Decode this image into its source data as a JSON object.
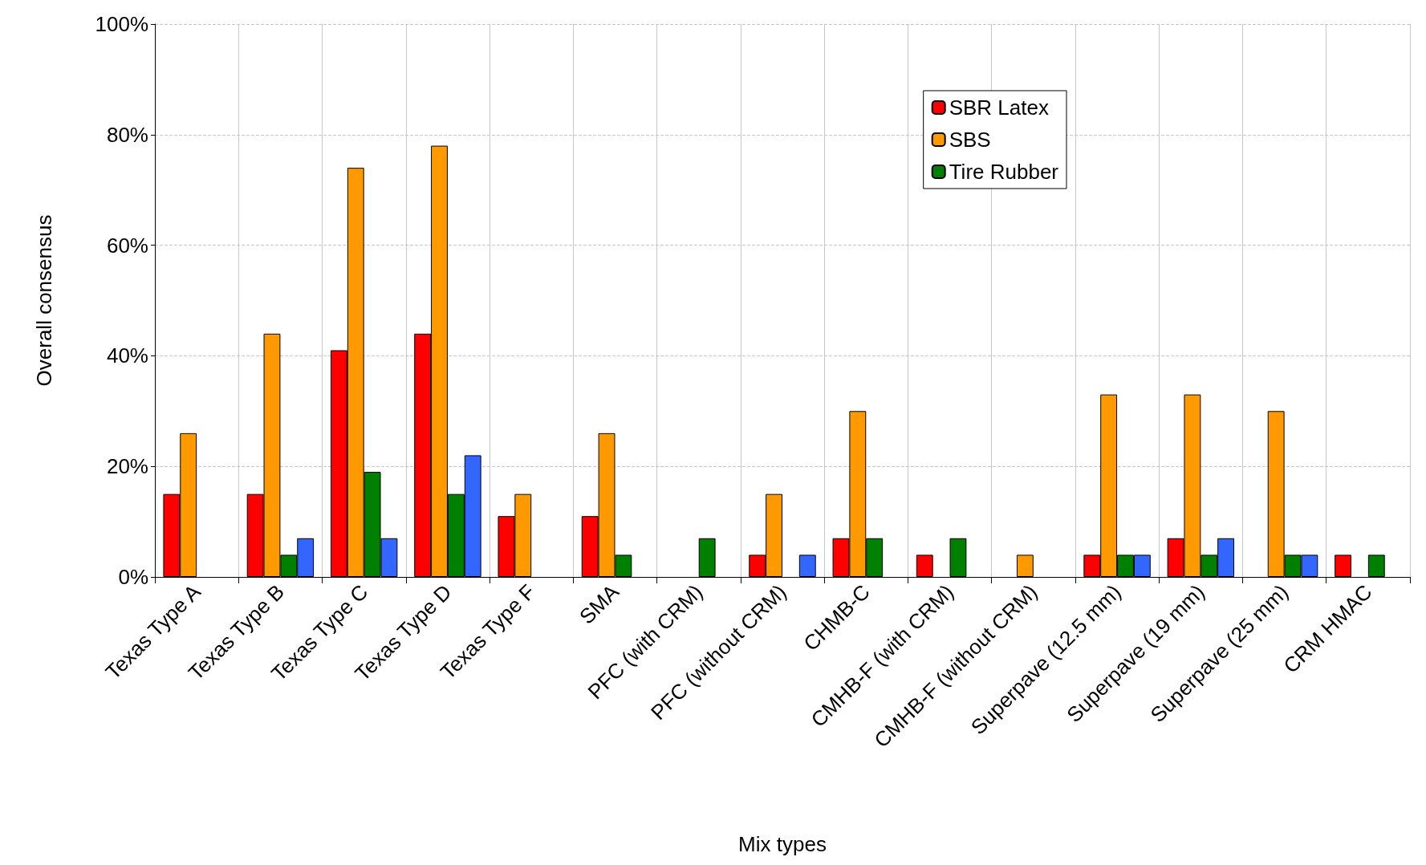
{
  "chart_data": {
    "type": "bar",
    "xlabel": "Mix types",
    "ylabel": "Overall consensus",
    "categories": [
      "Texas Type A",
      "Texas Type B",
      "Texas Type C",
      "Texas Type D",
      "Texas Type F",
      "SMA",
      "PFC (with CRM)",
      "PFC (without CRM)",
      "CHMB-C",
      "CMHB-F (with CRM)",
      "CMHB-F (without CRM)",
      "Superpave (12.5 mm)",
      "Superpave (19 mm)",
      "Superpave (25 mm)",
      "CRM HMAC"
    ],
    "series": [
      {
        "name": "SBR Latex",
        "color": "#ff0000",
        "values": [
          15,
          15,
          41,
          44,
          11,
          11,
          null,
          4,
          7,
          4,
          null,
          4,
          7,
          null,
          4
        ]
      },
      {
        "name": "SBS",
        "color": "#ff9900",
        "values": [
          26,
          44,
          74,
          78,
          15,
          26,
          null,
          15,
          30,
          null,
          4,
          33,
          33,
          30,
          null
        ]
      },
      {
        "name": "Tire Rubber",
        "color": "#008000",
        "values": [
          null,
          4,
          19,
          15,
          null,
          4,
          7,
          null,
          7,
          7,
          null,
          4,
          4,
          4,
          4
        ]
      },
      {
        "color": "#3366ff",
        "values": [
          null,
          7,
          7,
          22,
          null,
          null,
          null,
          4,
          null,
          null,
          null,
          4,
          7,
          4,
          null
        ]
      }
    ],
    "ylim": [
      0,
      100
    ],
    "yticks": [
      {
        "value": 0,
        "label": "0%"
      },
      {
        "value": 20,
        "label": "20%"
      },
      {
        "value": 40,
        "label": "40%"
      },
      {
        "value": 60,
        "label": "60%"
      },
      {
        "value": 80,
        "label": "80%"
      },
      {
        "value": 100,
        "label": "100%"
      }
    ],
    "grid": true,
    "legend": "top right"
  }
}
